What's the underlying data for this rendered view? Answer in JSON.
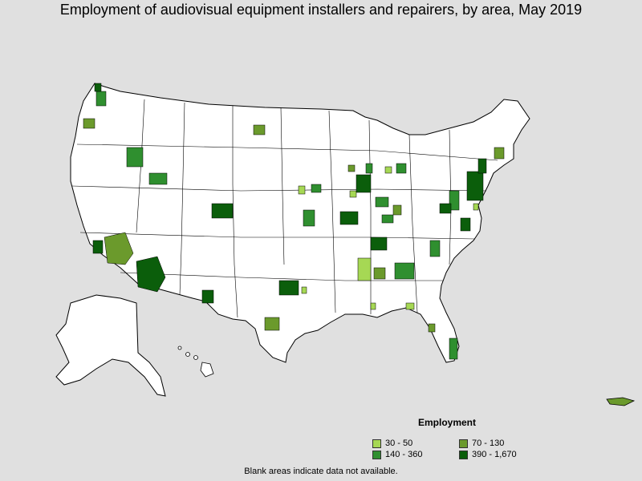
{
  "title": "Employment of audiovisual equipment installers and repairers, by area, May 2019",
  "legend": {
    "title": "Employment",
    "items": [
      {
        "label": "30 - 50",
        "color": "#a6d854"
      },
      {
        "label": "70 - 130",
        "color": "#6b9a2c"
      },
      {
        "label": "140 - 360",
        "color": "#2f8f2f"
      },
      {
        "label": "390 - 1,670",
        "color": "#0b5e0b"
      }
    ]
  },
  "footnote": "Blank areas indicate data not available.",
  "colors": {
    "background": "#e0e0e0",
    "land": "#ffffff",
    "border": "#000000"
  }
}
